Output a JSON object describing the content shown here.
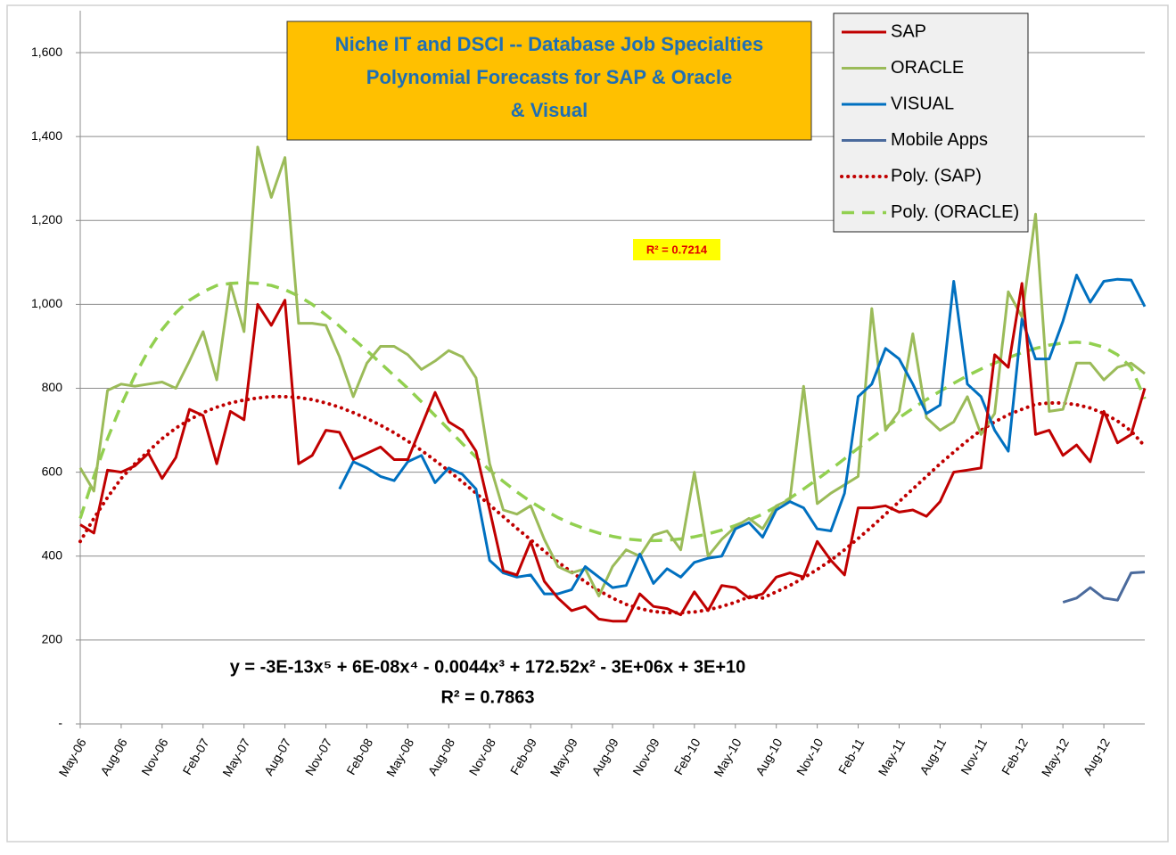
{
  "chart_data": {
    "type": "line",
    "title": [
      "Niche IT and DSCI -- Database Job Specialties",
      "Polynomial Forecasts for SAP & Oracle",
      "& Visual"
    ],
    "categories": [
      "May-06",
      null,
      null,
      "Aug-06",
      null,
      null,
      "Nov-06",
      null,
      null,
      "Feb-07",
      null,
      null,
      "May-07",
      null,
      null,
      "Aug-07",
      null,
      null,
      "Nov-07",
      null,
      null,
      "Feb-08",
      null,
      null,
      "May-08",
      null,
      null,
      "Aug-08",
      null,
      null,
      "Nov-08",
      null,
      null,
      "Feb-09",
      null,
      null,
      "May-09",
      null,
      null,
      "Aug-09",
      null,
      null,
      "Nov-09",
      null,
      null,
      "Feb-10",
      null,
      null,
      "May-10",
      null,
      null,
      "Aug-10",
      null,
      null,
      "Nov-10",
      null,
      null,
      "Feb-11",
      null,
      null,
      "May-11",
      null,
      null,
      "Aug-11",
      null,
      null,
      "Nov-11",
      null,
      null,
      "Feb-12",
      null,
      null,
      "May-12",
      null,
      null,
      "Aug-12",
      null,
      null,
      null
    ],
    "ylim": [
      0,
      1700
    ],
    "yticks": [
      {
        "value": 0,
        "label": "-"
      },
      200,
      400,
      600,
      800,
      {
        "value": 1000,
        "label": "1,000"
      },
      {
        "value": 1200,
        "label": "1,200"
      },
      {
        "value": 1400,
        "label": "1,400"
      },
      {
        "value": 1600,
        "label": "1,600"
      }
    ],
    "grid": true,
    "legend": "top-right",
    "series": [
      {
        "name": "SAP",
        "color": "#c00000",
        "style": "solid",
        "values": [
          475,
          455,
          605,
          600,
          615,
          645,
          585,
          635,
          750,
          735,
          620,
          745,
          725,
          1000,
          950,
          1010,
          620,
          640,
          700,
          695,
          630,
          645,
          660,
          630,
          630,
          710,
          790,
          720,
          700,
          650,
          510,
          365,
          355,
          435,
          340,
          300,
          270,
          280,
          250,
          245,
          245,
          310,
          280,
          275,
          260,
          315,
          270,
          330,
          325,
          300,
          310,
          350,
          360,
          350,
          435,
          390,
          355,
          515,
          515,
          520,
          505,
          510,
          495,
          530,
          600,
          605,
          610,
          880,
          850,
          1050,
          690,
          700,
          640,
          665,
          625,
          745,
          670,
          690,
          800
        ]
      },
      {
        "name": "ORACLE",
        "color": "#9bbb59",
        "style": "solid",
        "values": [
          610,
          555,
          795,
          810,
          805,
          810,
          815,
          800,
          865,
          935,
          820,
          1050,
          935,
          1375,
          1255,
          1350,
          955,
          955,
          950,
          875,
          780,
          860,
          900,
          900,
          880,
          845,
          865,
          890,
          875,
          825,
          620,
          510,
          500,
          520,
          440,
          375,
          360,
          370,
          305,
          375,
          415,
          400,
          450,
          460,
          415,
          600,
          400,
          440,
          470,
          490,
          465,
          520,
          535,
          805,
          525,
          550,
          570,
          590,
          990,
          700,
          745,
          930,
          730,
          700,
          720,
          780,
          690,
          740,
          1030,
          970,
          1215,
          745,
          750,
          860,
          860,
          820,
          850,
          860,
          835
        ]
      },
      {
        "name": "VISUAL",
        "color": "#0070c0",
        "style": "solid",
        "values": [
          null,
          null,
          null,
          null,
          null,
          null,
          null,
          null,
          null,
          null,
          null,
          null,
          null,
          null,
          null,
          null,
          null,
          null,
          null,
          560,
          625,
          610,
          590,
          580,
          625,
          640,
          575,
          610,
          595,
          560,
          390,
          360,
          350,
          355,
          310,
          310,
          320,
          375,
          350,
          325,
          330,
          405,
          335,
          370,
          350,
          385,
          395,
          400,
          465,
          480,
          445,
          510,
          530,
          515,
          465,
          460,
          550,
          780,
          810,
          895,
          870,
          810,
          740,
          760,
          1055,
          810,
          780,
          700,
          650,
          965,
          870,
          870,
          960,
          1070,
          1005,
          1055,
          1060,
          1058,
          995
        ]
      },
      {
        "name": "Mobile Apps",
        "color": "#4a6a9c",
        "style": "solid",
        "values": [
          null,
          null,
          null,
          null,
          null,
          null,
          null,
          null,
          null,
          null,
          null,
          null,
          null,
          null,
          null,
          null,
          null,
          null,
          null,
          null,
          null,
          null,
          null,
          null,
          null,
          null,
          null,
          null,
          null,
          null,
          null,
          null,
          null,
          null,
          null,
          null,
          null,
          null,
          null,
          null,
          null,
          null,
          null,
          null,
          null,
          null,
          null,
          null,
          null,
          null,
          null,
          null,
          null,
          null,
          null,
          null,
          null,
          null,
          null,
          null,
          null,
          null,
          null,
          null,
          null,
          null,
          null,
          null,
          null,
          null,
          null,
          null,
          290,
          300,
          325,
          300,
          295,
          360,
          362
        ]
      },
      {
        "name": "Poly. (SAP)",
        "color": "#c00000",
        "style": "dotted",
        "values": [
          435,
          490,
          540,
          585,
          620,
          650,
          680,
          705,
          725,
          742,
          755,
          765,
          772,
          777,
          780,
          780,
          778,
          773,
          765,
          755,
          742,
          728,
          712,
          694,
          674,
          652,
          628,
          603,
          577,
          550,
          522,
          494,
          466,
          439,
          412,
          386,
          362,
          339,
          318,
          300,
          285,
          275,
          268,
          265,
          265,
          267,
          272,
          280,
          290,
          303,
          300,
          315,
          330,
          348,
          368,
          390,
          415,
          442,
          470,
          500,
          530,
          560,
          590,
          620,
          648,
          675,
          700,
          720,
          737,
          750,
          762,
          765,
          765,
          761,
          753,
          740,
          722,
          698,
          662
        ]
      },
      {
        "name": "Poly. (ORACLE)",
        "color": "#92d050",
        "style": "dashed",
        "values": [
          490,
          590,
          680,
          760,
          830,
          890,
          940,
          980,
          1010,
          1030,
          1045,
          1050,
          1052,
          1050,
          1045,
          1035,
          1020,
          1000,
          975,
          948,
          918,
          890,
          860,
          830,
          800,
          768,
          735,
          702,
          668,
          636,
          605,
          578,
          553,
          530,
          510,
          492,
          477,
          465,
          455,
          447,
          441,
          438,
          437,
          438,
          441,
          446,
          453,
          462,
          473,
          486,
          500,
          518,
          538,
          560,
          583,
          607,
          632,
          657,
          682,
          706,
          730,
          752,
          773,
          793,
          812,
          830,
          846,
          860,
          873,
          885,
          895,
          903,
          908,
          910,
          907,
          898,
          880,
          850,
          775
        ]
      }
    ],
    "oracle_fit_label": "R² = 0.7214",
    "sap_fit_equation": "y = -3E-13x⁵ + 6E-08x⁴ - 0.0044x³ + 172.52x² - 3E+06x + 3E+10",
    "sap_fit_r2": "R² = 0.7863"
  }
}
